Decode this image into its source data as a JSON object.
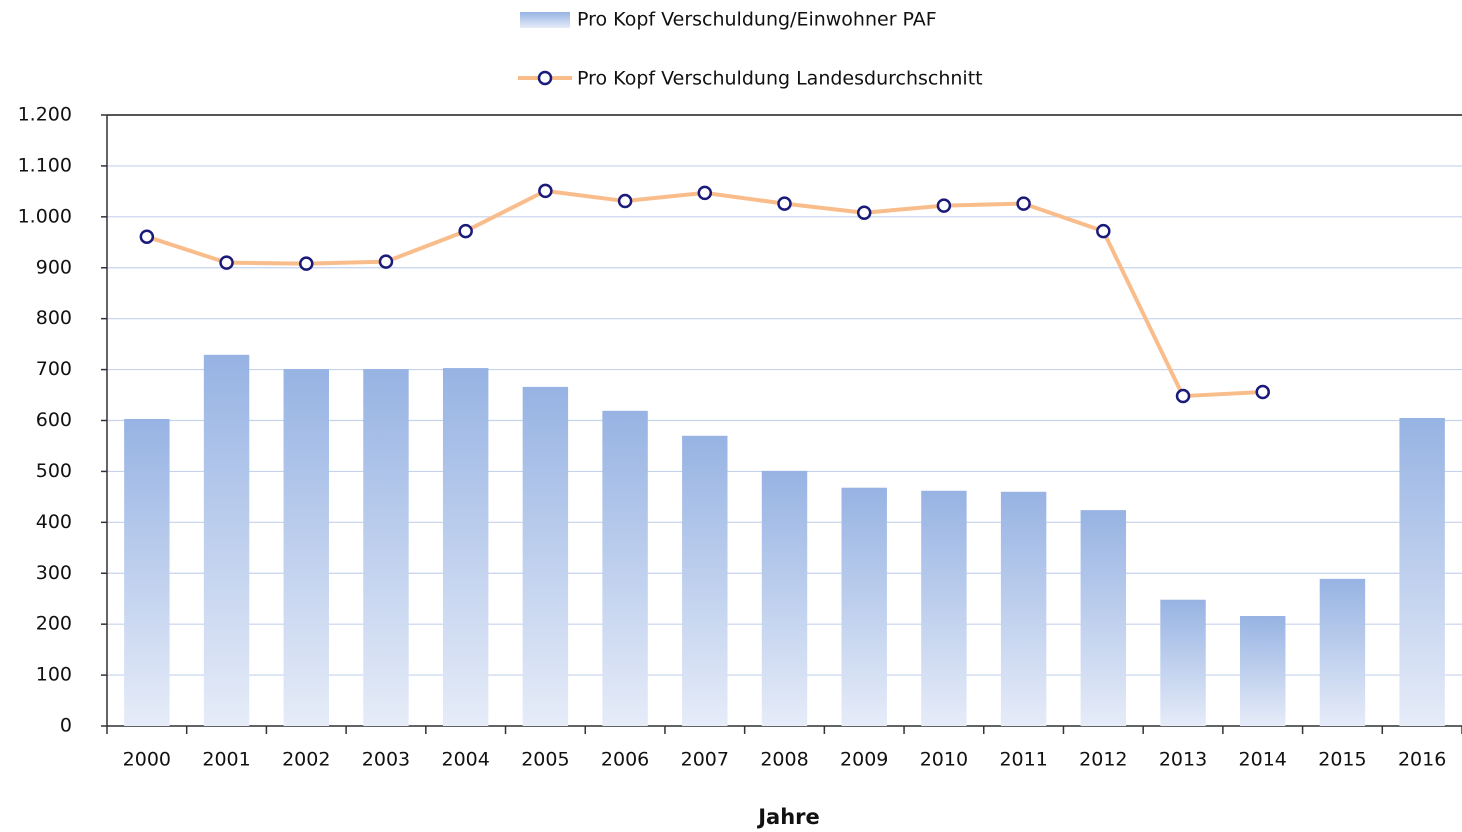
{
  "chart_data": {
    "type": "bar_line",
    "x_label": "Jahre",
    "categories": [
      "2000",
      "2001",
      "2002",
      "2003",
      "2004",
      "2005",
      "2006",
      "2007",
      "2008",
      "2009",
      "2010",
      "2011",
      "2012",
      "2013",
      "2014",
      "2015",
      "2016"
    ],
    "series": [
      {
        "name": "Pro Kopf Verschuldung/Einwohner PAF",
        "type": "bar",
        "color": "#97b3e3",
        "values": [
          603,
          729,
          701,
          701,
          703,
          666,
          619,
          570,
          501,
          468,
          462,
          460,
          424,
          248,
          216,
          289,
          605
        ]
      },
      {
        "name": "Pro Kopf Verschuldung Landesdurchschnitt",
        "type": "line",
        "color": "#f9bd8c",
        "marker_color": "#1a1a7a",
        "values": [
          961,
          910,
          908,
          912,
          972,
          1051,
          1031,
          1047,
          1026,
          1008,
          1022,
          1026,
          972,
          648,
          656,
          null,
          null
        ]
      }
    ],
    "ylim": [
      0,
      1200
    ],
    "yticks": [
      0,
      100,
      200,
      300,
      400,
      500,
      600,
      700,
      800,
      900,
      {
        "value": 1000,
        "label": "1.000"
      },
      {
        "value": 1100,
        "label": "1.100"
      },
      {
        "value": 1200,
        "label": "1.200"
      }
    ],
    "grid": true
  }
}
